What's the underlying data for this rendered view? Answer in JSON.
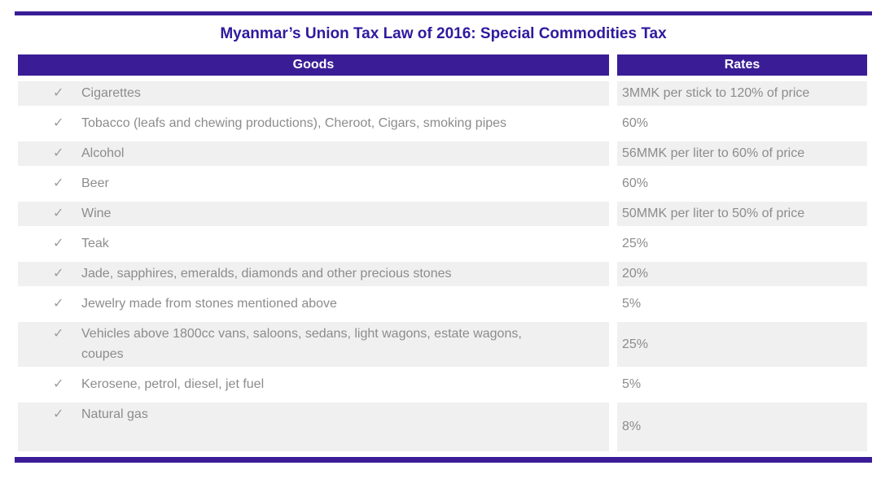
{
  "title": "Myanmar’s Union Tax Law of 2016: Special Commodities Tax",
  "table": {
    "columns": [
      "Goods",
      "Rates"
    ],
    "check_icon": "✓",
    "rows": [
      {
        "goods": "Cigarettes",
        "rate": "3MMK per stick to 120% of price"
      },
      {
        "goods": "Tobacco (leafs and chewing productions), Cheroot, Cigars, smoking pipes",
        "rate": "60%"
      },
      {
        "goods": "Alcohol",
        "rate": "56MMK per liter to 60% of price"
      },
      {
        "goods": "Beer",
        "rate": "60%"
      },
      {
        "goods": "Wine",
        "rate": "50MMK per liter to 50% of price"
      },
      {
        "goods": "Teak",
        "rate": "25%"
      },
      {
        "goods": "Jade, sapphires, emeralds, diamonds and other precious stones",
        "rate": "20%"
      },
      {
        "goods": "Jewelry made from stones mentioned above",
        "rate": "5%"
      },
      {
        "goods": "Vehicles above 1800cc vans, saloons, sedans, light wagons, estate wagons, coupes",
        "rate": "25%"
      },
      {
        "goods": "Kerosene, petrol, diesel, jet fuel",
        "rate": "5%"
      },
      {
        "goods": "Natural gas",
        "rate": "8%"
      }
    ]
  },
  "colors": {
    "accent_purple": "#3A1D96",
    "title_purple": "#2E1A9E",
    "header_text": "#FFFFFF",
    "row_shade": "#F0F0F0",
    "body_text": "#8C8C8C",
    "check_gray": "#9C9C9C"
  }
}
